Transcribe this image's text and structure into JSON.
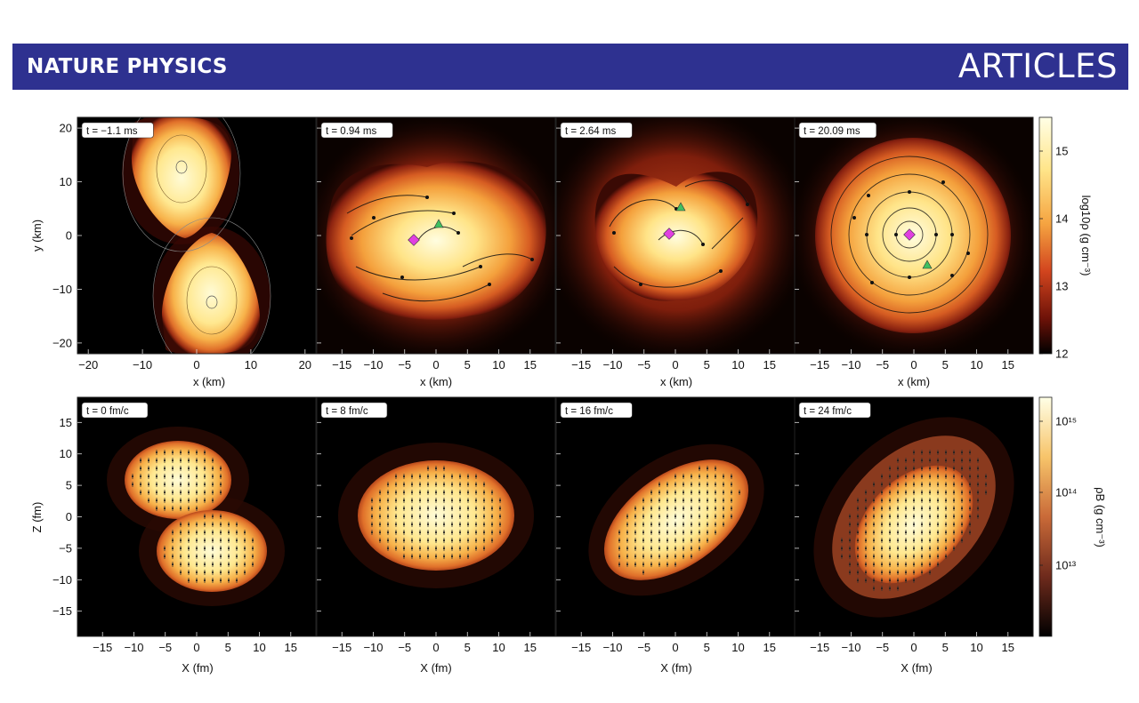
{
  "header": {
    "journal": "NATURE PHYSICS",
    "section": "ARTICLES"
  },
  "colors": {
    "banner": "#2e3190",
    "cmap_low": "#000000",
    "cmap_mid": "#d2451e",
    "cmap_high": "#ffffe6",
    "marker_diamond": "#e040e0",
    "marker_triangle": "#40c060"
  },
  "chart_data": [
    {
      "type": "heatmap",
      "row": "top",
      "xlabel": "x (km)",
      "ylabel": "y (km)",
      "colorbar": {
        "label": "log10ρ (g cm⁻³)",
        "range": [
          12,
          15.5
        ],
        "ticks": [
          "15",
          "14",
          "13",
          "12"
        ]
      },
      "panels": [
        {
          "time_label": "t = −1.1 ms",
          "x_ticks": [
            "−20",
            "−10",
            "0",
            "10",
            "20"
          ],
          "xlim": [
            -22,
            22
          ],
          "markers": false
        },
        {
          "time_label": "t = 0.94 ms",
          "x_ticks": [
            "−15",
            "−10",
            "−5",
            "0",
            "5",
            "10",
            "15"
          ],
          "xlim": [
            -19,
            19
          ],
          "markers": true
        },
        {
          "time_label": "t = 2.64 ms",
          "x_ticks": [
            "−15",
            "−10",
            "−5",
            "0",
            "5",
            "10",
            "15"
          ],
          "xlim": [
            -19,
            19
          ],
          "markers": true
        },
        {
          "time_label": "t = 20.09 ms",
          "x_ticks": [
            "−15",
            "−10",
            "−5",
            "0",
            "5",
            "10",
            "15"
          ],
          "xlim": [
            -19,
            19
          ],
          "markers": true
        }
      ],
      "y_ticks": [
        "20",
        "10",
        "0",
        "−10",
        "−20"
      ],
      "ylim": [
        -22,
        22
      ]
    },
    {
      "type": "heatmap",
      "row": "bottom",
      "xlabel": "X (fm)",
      "ylabel": "Z (fm)",
      "colorbar": {
        "label": "ρB (g cm⁻³)",
        "scale": "log",
        "ticks": [
          "10¹⁵",
          "10¹⁴",
          "10¹³"
        ]
      },
      "panels": [
        {
          "time_label": "t = 0 fm/c"
        },
        {
          "time_label": "t = 8 fm/c"
        },
        {
          "time_label": "t = 16 fm/c"
        },
        {
          "time_label": "t = 24 fm/c"
        }
      ],
      "x_ticks": [
        "−15",
        "−10",
        "−5",
        "0",
        "5",
        "10",
        "15"
      ],
      "xlim": [
        -19,
        19
      ],
      "y_ticks": [
        "15",
        "10",
        "5",
        "0",
        "−5",
        "−10",
        "−15"
      ],
      "ylim": [
        -19,
        19
      ]
    }
  ]
}
